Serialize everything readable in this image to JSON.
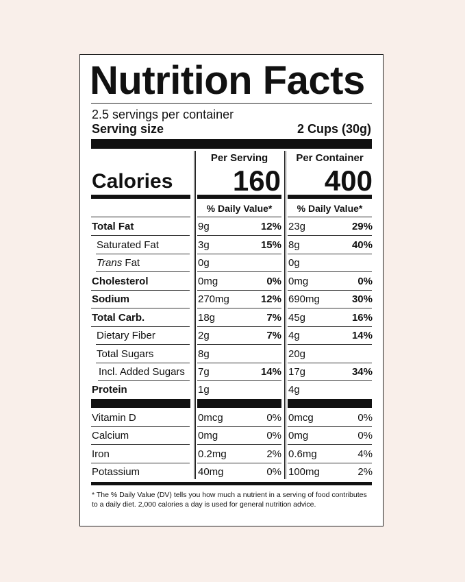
{
  "title": "Nutrition Facts",
  "servings_per_container": "2.5 servings per container",
  "serving_size_label": "Serving size",
  "serving_size_value": "2 Cups (30g)",
  "headers": {
    "per_serving": "Per Serving",
    "per_container": "Per Container",
    "daily_value": "% Daily Value*"
  },
  "calories": {
    "label": "Calories",
    "per_serving": "160",
    "per_container": "400"
  },
  "nutrients": [
    {
      "name": "Total Fat",
      "style": "bold",
      "indent": false,
      "serving_amount": "9g",
      "serving_dv": "12%",
      "container_amount": "23g",
      "container_dv": "29%"
    },
    {
      "name": "Saturated Fat",
      "style": "normal",
      "indent": true,
      "serving_amount": "3g",
      "serving_dv": "15%",
      "container_amount": "8g",
      "container_dv": "40%"
    },
    {
      "name_italic": "Trans",
      "name_rest": " Fat",
      "style": "trans",
      "indent": true,
      "serving_amount": "0g",
      "serving_dv": "",
      "container_amount": "0g",
      "container_dv": ""
    },
    {
      "name": "Cholesterol",
      "style": "bold",
      "indent": false,
      "serving_amount": "0mg",
      "serving_dv": "0%",
      "container_amount": "0mg",
      "container_dv": "0%"
    },
    {
      "name": "Sodium",
      "style": "bold",
      "indent": false,
      "serving_amount": "270mg",
      "serving_dv": "12%",
      "container_amount": "690mg",
      "container_dv": "30%"
    },
    {
      "name": "Total Carb.",
      "style": "bold",
      "indent": false,
      "serving_amount": "18g",
      "serving_dv": "7%",
      "container_amount": "45g",
      "container_dv": "16%"
    },
    {
      "name": "Dietary Fiber",
      "style": "normal",
      "indent": true,
      "serving_amount": "2g",
      "serving_dv": "7%",
      "container_amount": "4g",
      "container_dv": "14%"
    },
    {
      "name": "Total Sugars",
      "style": "normal",
      "indent": true,
      "serving_amount": "8g",
      "serving_dv": "",
      "container_amount": "20g",
      "container_dv": ""
    },
    {
      "name": "Incl. Added Sugars",
      "style": "normal",
      "indent": "double",
      "serving_amount": "7g",
      "serving_dv": "14%",
      "container_amount": "17g",
      "container_dv": "34%"
    },
    {
      "name": "Protein",
      "style": "bold",
      "indent": false,
      "serving_amount": "1g",
      "serving_dv": "",
      "container_amount": "4g",
      "container_dv": ""
    }
  ],
  "vitamins": [
    {
      "name": "Vitamin D",
      "serving_amount": "0mcg",
      "serving_dv": "0%",
      "container_amount": "0mcg",
      "container_dv": "0%"
    },
    {
      "name": "Calcium",
      "serving_amount": "0mg",
      "serving_dv": "0%",
      "container_amount": "0mg",
      "container_dv": "0%"
    },
    {
      "name": "Iron",
      "serving_amount": "0.2mg",
      "serving_dv": "2%",
      "container_amount": "0.6mg",
      "container_dv": "4%"
    },
    {
      "name": "Potassium",
      "serving_amount": "40mg",
      "serving_dv": "0%",
      "container_amount": "100mg",
      "container_dv": "2%"
    }
  ],
  "footnote": "* The % Daily Value (DV) tells you how much a nutrient in a serving of food contributes to a daily diet. 2,000 calories a day is used for general nutrition advice."
}
